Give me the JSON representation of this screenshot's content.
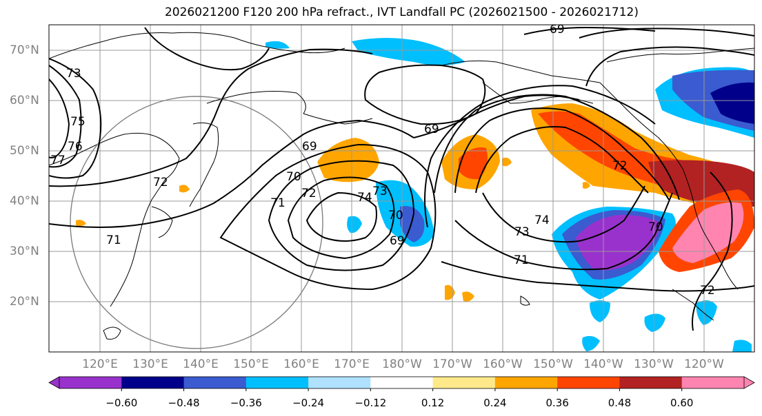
{
  "title": "2026021200 F120 200 hPa refract., IVT Landfall PC (2026021500 - 2026021712)",
  "lat_labels": [
    "70°N",
    "60°N",
    "50°N",
    "40°N",
    "30°N",
    "20°N"
  ],
  "lon_labels": [
    "120°E",
    "130°E",
    "140°E",
    "150°E",
    "160°E",
    "170°E",
    "180°W",
    "170°W",
    "160°W",
    "150°W",
    "140°W",
    "130°W",
    "120°W"
  ],
  "contour_labels": [
    "69",
    "69",
    "69",
    "70",
    "70",
    "70",
    "71",
    "71",
    "71",
    "72",
    "72",
    "72",
    "72",
    "73",
    "73",
    "73",
    "74",
    "74",
    "75",
    "76",
    "77",
    "69"
  ],
  "colorbar": {
    "ticks": [
      "−0.60",
      "−0.48",
      "−0.36",
      "−0.24",
      "−0.12",
      "0.12",
      "0.24",
      "0.36",
      "0.48",
      "0.60"
    ],
    "colors": [
      "#9932cc",
      "#00008b",
      "#3b5bd0",
      "#00bfff",
      "#b0e2ff",
      "#ffffff",
      "#ffe98a",
      "#ffa500",
      "#ff4500",
      "#b22222",
      "#ff85b0"
    ]
  },
  "colors": {
    "purple": "#9932cc",
    "navy": "#00008b",
    "royal": "#3b5bd0",
    "sky": "#00bfff",
    "light_sky": "#b0e2ff",
    "light_yellow": "#ffe98a",
    "orange": "#ffa500",
    "red_orange": "#ff4500",
    "dark_red": "#b22222",
    "pink": "#ff85b0"
  }
}
